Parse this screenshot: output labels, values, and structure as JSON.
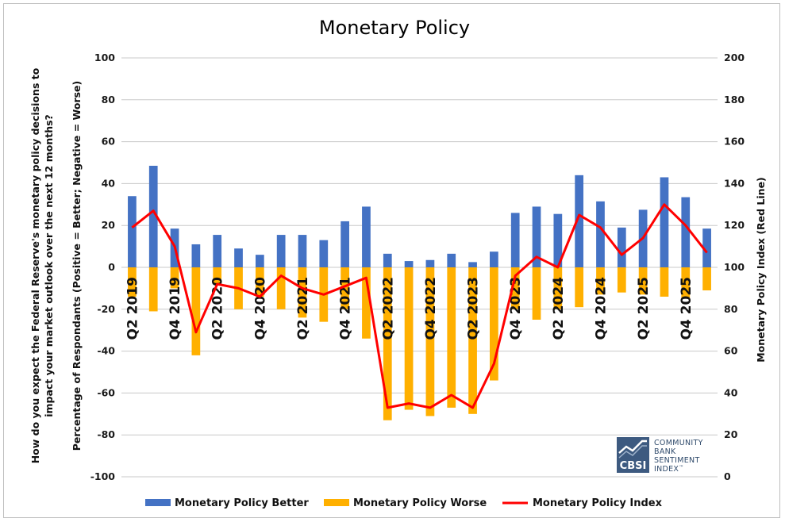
{
  "chart_data": {
    "type": "bar",
    "title": "Monetary Policy",
    "ylabel": "Percentage of Respondants (Positive = Better; Negative = Worse)",
    "question": "How do you expect the Federal Reserve's monetary policy decisions to impact your market outlook over the next 12 months?",
    "y2label": "Monetary Policy Index (Red Line)",
    "ylim": [
      -100,
      100
    ],
    "y2lim": [
      0,
      200
    ],
    "yticks": [
      100,
      80,
      60,
      40,
      20,
      0,
      -20,
      -40,
      -60,
      -80,
      -100
    ],
    "y2ticks": [
      200,
      180,
      160,
      140,
      120,
      100,
      80,
      60,
      40,
      20,
      0
    ],
    "categories": [
      "Q2 2019",
      "Q3 2019",
      "Q4 2019",
      "Q1 2020",
      "Q2 2020",
      "Q3 2020",
      "Q4 2020",
      "Q1 2021",
      "Q2 2021",
      "Q3 2021",
      "Q4 2021",
      "Q1 2022",
      "Q2 2022",
      "Q3 2022",
      "Q4 2022",
      "Q1 2023",
      "Q2 2023",
      "Q3 2023",
      "Q4 2023",
      "Q1 2024",
      "Q2 2024",
      "Q3 2024",
      "Q4 2024",
      "Q1 2025",
      "Q2 2025",
      "Q3 2025",
      "Q4 2025",
      "Q1 2026"
    ],
    "xtick_labels": [
      "Q2 2019",
      "Q4 2019",
      "Q2 2020",
      "Q4 2020",
      "Q2 2021",
      "Q4 2021",
      "Q2 2022",
      "Q4 2022",
      "Q2 2023",
      "Q4 2023",
      "Q2 2024",
      "Q4 2024",
      "Q2 2025",
      "Q4 2025"
    ],
    "series": [
      {
        "name": "Monetary Policy Better",
        "axis": "left",
        "kind": "bar",
        "color": "#4472c4",
        "values": [
          34,
          48.5,
          18.5,
          11,
          15.5,
          9,
          6,
          15.5,
          15.5,
          13,
          22,
          29,
          6.5,
          3,
          3.5,
          6.5,
          2.5,
          7.5,
          26,
          29,
          25.5,
          44,
          31.5,
          19,
          27.5,
          43,
          33.5,
          18.5
        ]
      },
      {
        "name": "Monetary Policy Worse",
        "axis": "left",
        "kind": "bar",
        "color": "#ffb000",
        "values": [
          -14,
          -21,
          -10,
          -42,
          -8,
          -20,
          -14,
          -20,
          -24,
          -26,
          -20,
          -34,
          -73,
          -68,
          -71,
          -67,
          -70,
          -54,
          -20,
          -25,
          -20,
          -19,
          -13,
          -12,
          -13,
          -14,
          -15,
          -11
        ]
      },
      {
        "name": "Monetary Policy Index",
        "axis": "right",
        "kind": "line",
        "color": "#ff0000",
        "values": [
          119,
          127,
          110,
          69,
          92,
          90,
          86,
          96,
          90,
          87,
          91,
          95,
          33,
          35,
          33,
          39,
          33,
          54,
          96,
          105,
          100,
          125,
          119,
          106,
          114,
          130,
          120,
          107
        ]
      }
    ],
    "legend": "bottom",
    "grid": true
  },
  "logo": {
    "acronym": "CBSI",
    "line1": "COMMUNITY",
    "line2": "BANK",
    "line3": "SENTIMENT",
    "line4": "INDEX",
    "trademark": "™"
  }
}
